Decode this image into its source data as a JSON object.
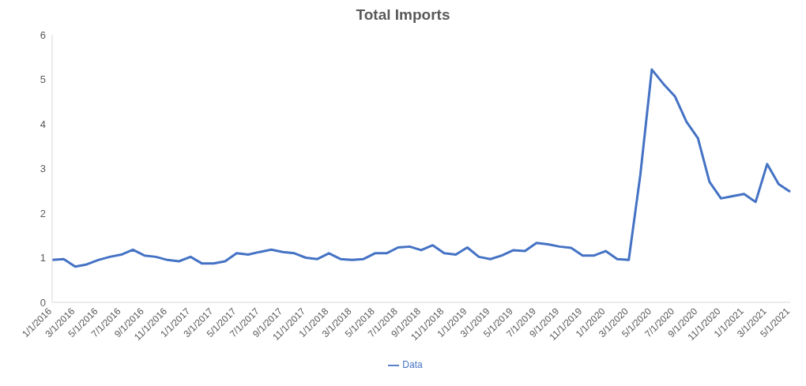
{
  "chart_data": {
    "type": "line",
    "title": "Total Imports",
    "categories": [
      "1/1/2016",
      null,
      "3/1/2016",
      null,
      "5/1/2016",
      null,
      "7/1/2016",
      null,
      "9/1/2016",
      null,
      "11/1/2016",
      null,
      "1/1/2017",
      null,
      "3/1/2017",
      null,
      "5/1/2017",
      null,
      "7/1/2017",
      null,
      "9/1/2017",
      null,
      "11/1/2017",
      null,
      "1/1/2018",
      null,
      "3/1/2018",
      null,
      "5/1/2018",
      null,
      "7/1/2018",
      null,
      "9/1/2018",
      null,
      "11/1/2018",
      null,
      "1/1/2019",
      null,
      "3/1/2019",
      null,
      "5/1/2019",
      null,
      "7/1/2019",
      null,
      "9/1/2019",
      null,
      "11/1/2019",
      null,
      "1/1/2020",
      null,
      "3/1/2020",
      null,
      "5/1/2020",
      null,
      "7/1/2020",
      null,
      "9/1/2020",
      null,
      "11/1/2020",
      null,
      "1/1/2021",
      null,
      "3/1/2021",
      null,
      "5/1/2021"
    ],
    "series": [
      {
        "name": "Data",
        "color": "#4472c4",
        "values": [
          0.95,
          0.97,
          0.8,
          0.85,
          0.95,
          1.02,
          1.07,
          1.18,
          1.05,
          1.02,
          0.95,
          0.92,
          1.02,
          0.87,
          0.87,
          0.92,
          1.1,
          1.07,
          1.13,
          1.18,
          1.13,
          1.1,
          1.0,
          0.97,
          1.1,
          0.97,
          0.95,
          0.97,
          1.1,
          1.1,
          1.23,
          1.25,
          1.17,
          1.28,
          1.1,
          1.07,
          1.23,
          1.02,
          0.97,
          1.05,
          1.17,
          1.15,
          1.33,
          1.3,
          1.25,
          1.22,
          1.05,
          1.05,
          1.15,
          0.97,
          0.95,
          2.85,
          5.22,
          4.9,
          4.62,
          4.05,
          3.68,
          2.7,
          2.33,
          2.38,
          2.43,
          2.25,
          3.1,
          2.65,
          2.48
        ]
      }
    ],
    "ylim": [
      0,
      6
    ],
    "yticks": [
      0,
      1,
      2,
      3,
      4,
      5,
      6
    ],
    "grid": false,
    "legend": "bottom",
    "marker": "none",
    "line_style": "solid"
  }
}
